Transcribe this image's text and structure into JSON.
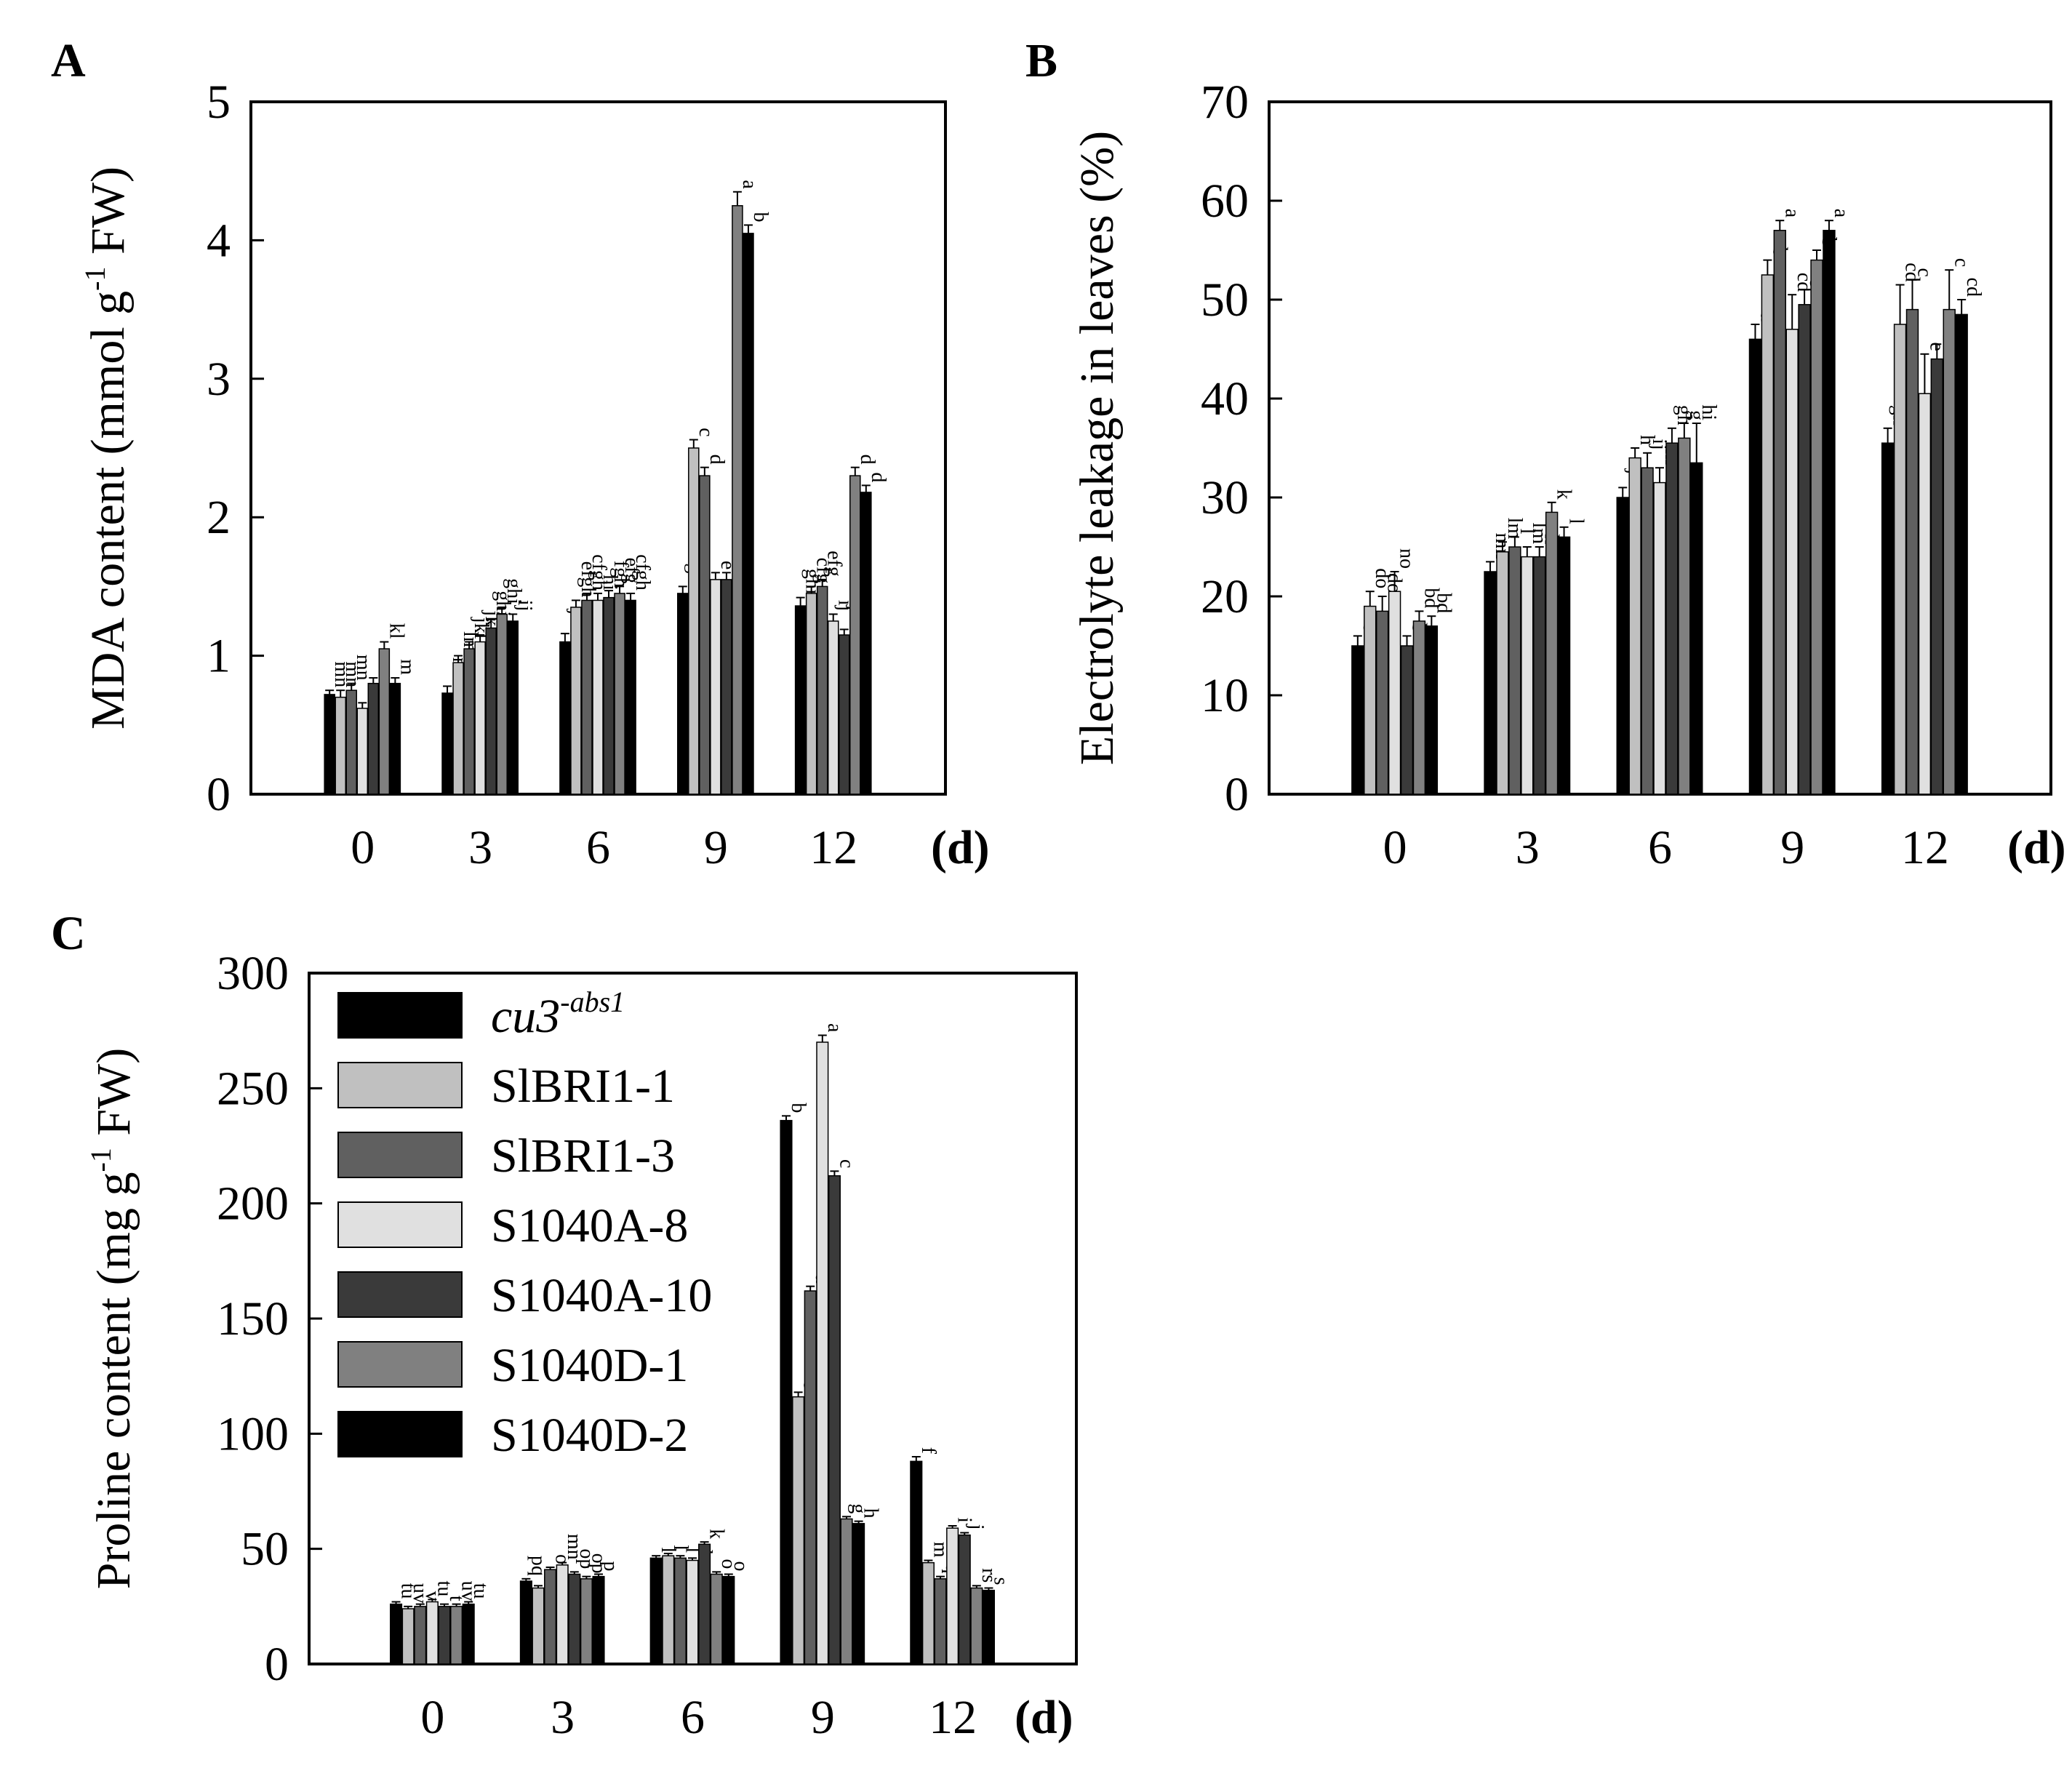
{
  "chart_data": [
    {
      "id": "A",
      "type": "bar",
      "panel_label": "A",
      "ylabel_main": "MDA content (mmol g",
      "ylabel_sup": "-1",
      "ylabel_end": " FW)",
      "unit_label": "(d)",
      "categories": [
        "0",
        "3",
        "6",
        "9",
        "12"
      ],
      "yticks": [
        0,
        1,
        2,
        3,
        4,
        5
      ],
      "ylim": [
        0,
        5
      ],
      "series": [
        {
          "name": "cu3-abs1",
          "values": [
            0.72,
            0.73,
            1.1,
            1.45,
            1.36
          ],
          "errors": [
            0.03,
            0.05,
            0.06,
            0.05,
            0.06
          ],
          "labels": [
            "mn",
            "mn",
            "jkl",
            "efgh",
            "ghi"
          ]
        },
        {
          "name": "SlBRI1-1",
          "values": [
            0.7,
            0.95,
            1.35,
            2.5,
            1.45
          ],
          "errors": [
            0.05,
            0.05,
            0.05,
            0.06,
            0.05
          ],
          "labels": [
            "mn",
            "lm",
            "efgh",
            "c",
            "cfg"
          ]
        },
        {
          "name": "SlBRI1-3",
          "values": [
            0.75,
            1.05,
            1.4,
            2.3,
            1.5
          ],
          "errors": [
            0.05,
            0.05,
            0.05,
            0.06,
            0.05
          ],
          "labels": [
            "mn",
            "jkl",
            "cfgh",
            "d",
            "efg"
          ]
        },
        {
          "name": "S1040A-8",
          "values": [
            0.62,
            1.1,
            1.4,
            1.55,
            1.25
          ],
          "errors": [
            0.04,
            0.05,
            0.05,
            0.05,
            0.05
          ],
          "labels": [
            "n",
            "jkl",
            "hi",
            "e",
            "ij"
          ]
        },
        {
          "name": "S1040A-10",
          "values": [
            0.8,
            1.2,
            1.42,
            1.55,
            1.15
          ],
          "errors": [
            0.04,
            0.06,
            0.05,
            0.05,
            0.04
          ],
          "labels": [
            "mn",
            "ghi",
            "fgh",
            "e",
            "jkl"
          ]
        },
        {
          "name": "S1040D-1",
          "values": [
            1.05,
            1.3,
            1.45,
            4.25,
            2.3
          ],
          "errors": [
            0.05,
            0.05,
            0.05,
            0.1,
            0.06
          ],
          "labels": [
            "kl",
            "ghi",
            "efg",
            "a",
            "d"
          ]
        },
        {
          "name": "S1040D-2",
          "values": [
            0.8,
            1.25,
            1.4,
            4.05,
            2.18
          ],
          "errors": [
            0.04,
            0.05,
            0.05,
            0.06,
            0.05
          ],
          "labels": [
            "m",
            "ij",
            "cfgh",
            "b",
            "d"
          ]
        }
      ]
    },
    {
      "id": "B",
      "type": "bar",
      "panel_label": "B",
      "ylabel_main": "Electrolyte leakage in leaves (%)",
      "unit_label": "(d)",
      "categories": [
        "0",
        "3",
        "6",
        "9",
        "12"
      ],
      "yticks": [
        0,
        10,
        20,
        30,
        40,
        50,
        60,
        70
      ],
      "ylim": [
        0,
        70
      ],
      "series": [
        {
          "name": "cu3-abs1",
          "values": [
            15.0,
            22.5,
            30.0,
            46.0,
            35.5
          ],
          "errors": [
            1.0,
            1.0,
            1.0,
            1.5,
            1.5
          ],
          "labels": [
            "b",
            "mn",
            "jk",
            "d",
            "gh"
          ]
        },
        {
          "name": "SlBRI1-1",
          "values": [
            19.0,
            24.5,
            34.0,
            52.5,
            47.5
          ],
          "errors": [
            1.5,
            1.0,
            1.0,
            1.5,
            4.0
          ],
          "labels": [
            "do",
            "lm",
            "h",
            "b",
            "cd"
          ]
        },
        {
          "name": "SlBRI1-3",
          "values": [
            18.5,
            25.0,
            33.0,
            57.0,
            49.0
          ],
          "errors": [
            1.5,
            1.0,
            1.5,
            1.0,
            3.0
          ],
          "labels": [
            "do",
            "l",
            "ij",
            "a",
            "c"
          ]
        },
        {
          "name": "S1040A-8",
          "values": [
            20.5,
            24.0,
            31.5,
            47.0,
            40.5
          ],
          "errors": [
            2.0,
            1.0,
            1.5,
            3.5,
            4.0
          ],
          "labels": [
            "no",
            "lm",
            "hi",
            "cd",
            "e"
          ]
        },
        {
          "name": "S1040A-10",
          "values": [
            15.0,
            24.0,
            35.5,
            49.5,
            44.0
          ],
          "errors": [
            1.0,
            1.0,
            1.5,
            1.5,
            1.5
          ],
          "labels": [
            "b",
            "k",
            "gh",
            "c",
            "f"
          ]
        },
        {
          "name": "S1040D-1",
          "values": [
            17.5,
            28.5,
            36.0,
            54.0,
            49.0
          ],
          "errors": [
            1.0,
            1.0,
            1.5,
            1.0,
            4.0
          ],
          "labels": [
            "bd",
            "k",
            "g",
            "b",
            "c"
          ]
        },
        {
          "name": "S1040D-2",
          "values": [
            17.0,
            26.0,
            33.5,
            57.0,
            48.5
          ],
          "errors": [
            1.0,
            1.0,
            4.0,
            1.0,
            1.5
          ],
          "labels": [
            "bd",
            "l",
            "hi",
            "a",
            "cd"
          ]
        }
      ]
    },
    {
      "id": "C",
      "type": "bar",
      "panel_label": "C",
      "ylabel_main": "Proline content (mg g",
      "ylabel_sup": "-1",
      "ylabel_end": " FW)",
      "unit_label": "(d)",
      "categories": [
        "0",
        "3",
        "6",
        "9",
        "12"
      ],
      "yticks": [
        0,
        50,
        100,
        150,
        200,
        250,
        300
      ],
      "ylim": [
        0,
        300
      ],
      "series": [
        {
          "name": "cu3-abs1",
          "values": [
            26,
            36,
            46,
            236,
            88
          ],
          "errors": [
            1,
            1,
            1,
            2,
            2
          ],
          "labels": [
            "tu",
            "pq",
            "l",
            "b",
            "f"
          ]
        },
        {
          "name": "SlBRI1-1",
          "values": [
            24,
            33,
            47,
            116,
            44
          ],
          "errors": [
            1,
            1,
            1,
            2,
            1
          ],
          "labels": [
            "uv",
            "r",
            "l",
            "e",
            "m"
          ]
        },
        {
          "name": "SlBRI1-3",
          "values": [
            25,
            41,
            46,
            162,
            37
          ],
          "errors": [
            1,
            1,
            1,
            2,
            1
          ],
          "labels": [
            "v",
            "o",
            "l",
            "d",
            "q"
          ]
        },
        {
          "name": "S1040A-8",
          "values": [
            27,
            43,
            45,
            270,
            59
          ],
          "errors": [
            1,
            1,
            1,
            3,
            1
          ],
          "labels": [
            "tu",
            "mn",
            "l",
            "a",
            "i"
          ]
        },
        {
          "name": "S1040A-10",
          "values": [
            25,
            39,
            52,
            212,
            56
          ],
          "errors": [
            1,
            1,
            1,
            2,
            1
          ],
          "labels": [
            "t",
            "op",
            "k",
            "c",
            "j"
          ]
        },
        {
          "name": "S1040D-1",
          "values": [
            25,
            37,
            39,
            63,
            33
          ],
          "errors": [
            1,
            1,
            1,
            1,
            1
          ],
          "labels": [
            "uv",
            "op",
            "o",
            "g",
            "rs"
          ]
        },
        {
          "name": "S1040D-2",
          "values": [
            26,
            38,
            38,
            61,
            32
          ],
          "errors": [
            1,
            1,
            1,
            1,
            1
          ],
          "labels": [
            "tu",
            "p",
            "o",
            "h",
            "s"
          ]
        }
      ]
    }
  ],
  "legend": {
    "items": [
      {
        "label": "cu3",
        "sup": "-abs1",
        "italic": true,
        "color": "#000000"
      },
      {
        "label": "SlBRI1-1",
        "color": "#c0c0c0"
      },
      {
        "label": "SlBRI1-3",
        "color": "#606060"
      },
      {
        "label": "S1040A-8",
        "color": "#e0e0e0"
      },
      {
        "label": "S1040A-10",
        "color": "#3a3a3a"
      },
      {
        "label": "S1040D-1",
        "color": "#808080"
      },
      {
        "label": "S1040D-2",
        "color": "#000000"
      }
    ]
  },
  "series_colors": [
    "#000000",
    "#c0c0c0",
    "#606060",
    "#e0e0e0",
    "#3a3a3a",
    "#808080",
    "#000000"
  ]
}
